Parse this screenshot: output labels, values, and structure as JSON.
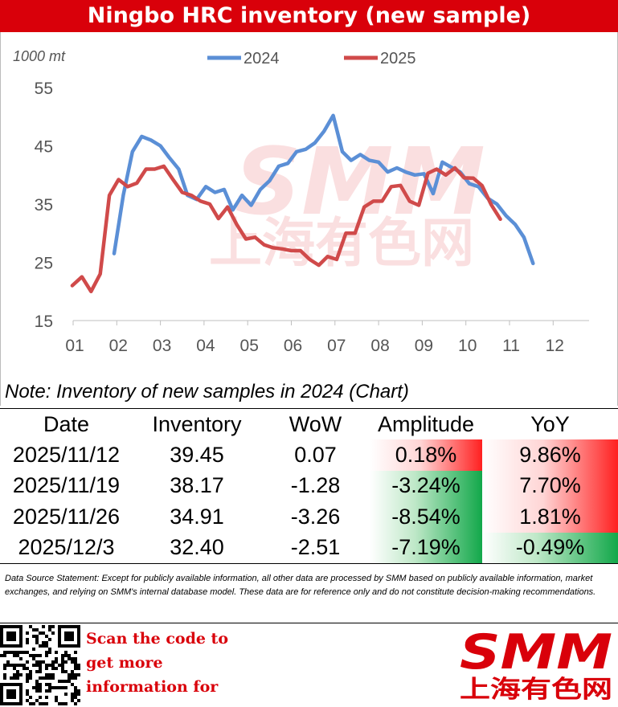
{
  "title": "Ningbo HRC inventory (new sample)",
  "colors": {
    "brand_red": "#d9000a",
    "series_2024": "#5b8fd6",
    "series_2025": "#d04a4a",
    "pos_cell": "#ff2020",
    "neg_cell": "#12a84a"
  },
  "chart_data": {
    "type": "line",
    "title": "Ningbo HRC inventory (new sample)",
    "unit_label": "1000 mt",
    "xlabel": "",
    "ylabel": "",
    "x_ticks": [
      "01",
      "02",
      "03",
      "04",
      "05",
      "06",
      "07",
      "08",
      "09",
      "10",
      "11",
      "12"
    ],
    "y_ticks": [
      15,
      25,
      35,
      45,
      55
    ],
    "ylim": [
      15,
      55
    ],
    "grid": false,
    "legend": "top",
    "series": [
      {
        "name": "2024",
        "color": "#5b8fd6",
        "points": [
          [
            1.94,
            26.5
          ],
          [
            2.15,
            36.5
          ],
          [
            2.36,
            44
          ],
          [
            2.57,
            46.6
          ],
          [
            2.78,
            46
          ],
          [
            3.0,
            45
          ],
          [
            3.2,
            43
          ],
          [
            3.42,
            41
          ],
          [
            3.62,
            36.5
          ],
          [
            3.83,
            35.8
          ],
          [
            4.04,
            38
          ],
          [
            4.25,
            37
          ],
          [
            4.46,
            37.5
          ],
          [
            4.66,
            34
          ],
          [
            4.87,
            36.5
          ],
          [
            5.08,
            34.8
          ],
          [
            5.29,
            37.5
          ],
          [
            5.5,
            39
          ],
          [
            5.71,
            41.5
          ],
          [
            5.92,
            42
          ],
          [
            6.12,
            44
          ],
          [
            6.33,
            44.4
          ],
          [
            6.54,
            45.5
          ],
          [
            6.75,
            47.5
          ],
          [
            6.96,
            50.2
          ],
          [
            7.17,
            44
          ],
          [
            7.37,
            42.5
          ],
          [
            7.58,
            43.5
          ],
          [
            7.79,
            42.5
          ],
          [
            8.0,
            42.2
          ],
          [
            8.21,
            40.5
          ],
          [
            8.42,
            41.2
          ],
          [
            8.62,
            40.5
          ],
          [
            8.83,
            40
          ],
          [
            9.04,
            40.2
          ],
          [
            9.25,
            36.8
          ],
          [
            9.46,
            42.2
          ],
          [
            9.67,
            41.3
          ],
          [
            9.87,
            40.5
          ],
          [
            10.08,
            38.5
          ],
          [
            10.29,
            38
          ],
          [
            10.5,
            36
          ],
          [
            10.71,
            35
          ],
          [
            10.92,
            33
          ],
          [
            11.13,
            31.5
          ],
          [
            11.33,
            29.3
          ],
          [
            11.54,
            24.8
          ]
        ]
      },
      {
        "name": "2025",
        "color": "#d04a4a",
        "points": [
          [
            0.98,
            21
          ],
          [
            1.2,
            22.5
          ],
          [
            1.41,
            20
          ],
          [
            1.62,
            23
          ],
          [
            1.83,
            36.5
          ],
          [
            2.04,
            39.2
          ],
          [
            2.25,
            38
          ],
          [
            2.46,
            38.6
          ],
          [
            2.67,
            41
          ],
          [
            2.87,
            41
          ],
          [
            3.08,
            41.5
          ],
          [
            3.29,
            39.2
          ],
          [
            3.5,
            37
          ],
          [
            3.71,
            36.5
          ],
          [
            3.92,
            35.5
          ],
          [
            4.13,
            35
          ],
          [
            4.33,
            32.5
          ],
          [
            4.54,
            34.5
          ],
          [
            4.75,
            31.5
          ],
          [
            4.96,
            29
          ],
          [
            5.17,
            29.3
          ],
          [
            5.38,
            28
          ],
          [
            5.58,
            27.5
          ],
          [
            5.79,
            27.3
          ],
          [
            6.0,
            27
          ],
          [
            6.21,
            27
          ],
          [
            6.42,
            25.5
          ],
          [
            6.63,
            24.5
          ],
          [
            6.83,
            26
          ],
          [
            7.04,
            25.5
          ],
          [
            7.25,
            30
          ],
          [
            7.46,
            30
          ],
          [
            7.67,
            34.5
          ],
          [
            7.88,
            35.5
          ],
          [
            8.08,
            35.5
          ],
          [
            8.29,
            38
          ],
          [
            8.5,
            38.2
          ],
          [
            8.71,
            35.5
          ],
          [
            8.92,
            34.8
          ],
          [
            9.13,
            40.3
          ],
          [
            9.33,
            41
          ],
          [
            9.54,
            40
          ],
          [
            9.75,
            41.2
          ],
          [
            9.96,
            39.5
          ],
          [
            10.17,
            39.45
          ],
          [
            10.37,
            38.17
          ],
          [
            10.58,
            34.91
          ],
          [
            10.79,
            32.4
          ]
        ]
      }
    ]
  },
  "note": "Note: Inventory of new samples in 2024 (Chart)",
  "table": {
    "headers": [
      "Date",
      "Inventory",
      "WoW",
      "Amplitude",
      "YoY"
    ],
    "rows": [
      {
        "date": "2025/11/12",
        "inventory": "39.45",
        "wow": "0.07",
        "amplitude": "0.18%",
        "yoy": "9.86%",
        "amp_sign": "pos",
        "yoy_sign": "pos"
      },
      {
        "date": "2025/11/19",
        "inventory": "38.17",
        "wow": "-1.28",
        "amplitude": "-3.24%",
        "yoy": "7.70%",
        "amp_sign": "neg",
        "yoy_sign": "pos"
      },
      {
        "date": "2025/11/26",
        "inventory": "34.91",
        "wow": "-3.26",
        "amplitude": "-8.54%",
        "yoy": "1.81%",
        "amp_sign": "neg",
        "yoy_sign": "pos"
      },
      {
        "date": "2025/12/3",
        "inventory": "32.40",
        "wow": "-2.51",
        "amplitude": "-7.19%",
        "yoy": "-0.49%",
        "amp_sign": "neg",
        "yoy_sign": "neg"
      }
    ]
  },
  "disclaimer": "Data Source Statement: Except for publicly available information, all other data are processed by SMM based on publicly available information, market exchanges, and relying on SMM's internal database model. These data are for reference only and do not constitute decision-making recommendations.",
  "scan_lines": [
    "Scan the code to",
    "get more",
    "information for"
  ],
  "watermark": {
    "text_en": "SMM",
    "text_cn": "上海有色网"
  },
  "logo": {
    "text_en": "SMM",
    "text_cn": "上海有色网"
  }
}
